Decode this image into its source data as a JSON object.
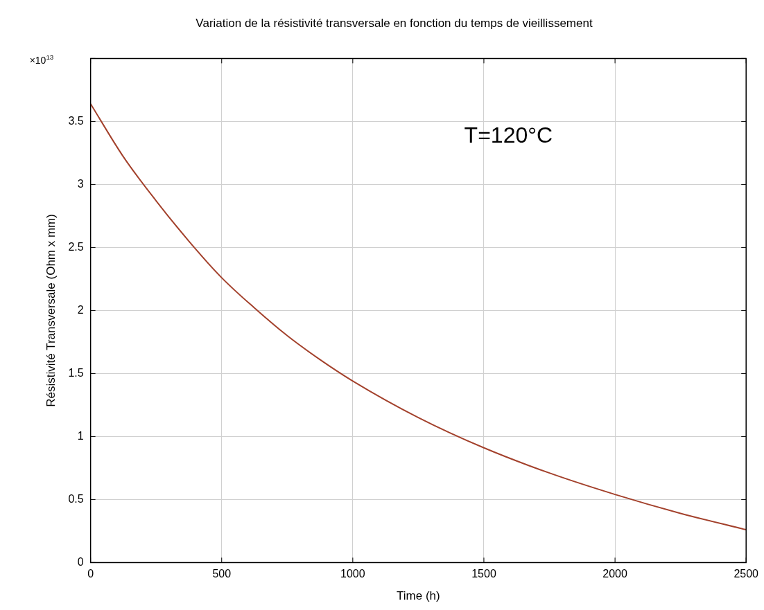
{
  "chart_data": {
    "type": "line",
    "title": "Variation de la résistivité transversale en fonction du temps de vieillissement",
    "xlabel": "Time (h)",
    "ylabel": "Résistivité Transversale (Ohm x mm)",
    "x": [
      0,
      125,
      250,
      375,
      500,
      625,
      750,
      875,
      1000,
      1250,
      1500,
      1750,
      2000,
      2250,
      2500
    ],
    "series": [
      {
        "color": "#a3412c",
        "values": [
          3.64,
          3.22,
          2.87,
          2.55,
          2.26,
          2.02,
          1.8,
          1.61,
          1.44,
          1.15,
          0.91,
          0.71,
          0.54,
          0.39,
          0.26
        ]
      }
    ],
    "xlim": [
      0,
      2500
    ],
    "xticks": [
      0,
      500,
      1000,
      1500,
      2000,
      2500
    ],
    "ylim": [
      0,
      4
    ],
    "yticks": [
      0,
      0.5,
      1,
      1.5,
      2,
      2.5,
      3,
      3.5,
      {
        "value": 4,
        "label": null
      }
    ],
    "annotations": [
      "×10$^{13}$",
      "T=120°C"
    ],
    "grid": true,
    "legend": false,
    "marker": "none",
    "line_style": "solid"
  }
}
